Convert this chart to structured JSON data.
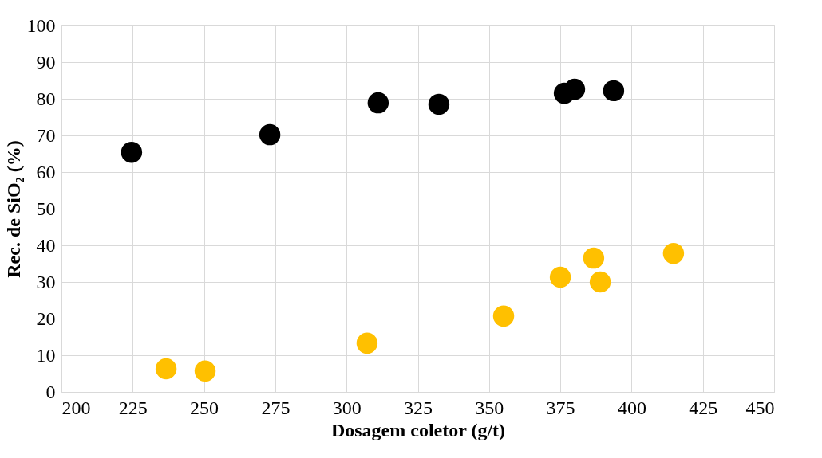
{
  "chart_data": {
    "type": "scatter",
    "xlabel": "Dosagem coletor (g/t)",
    "ylabel": "Rec. de SiO₂ (%)",
    "xlim": [
      200,
      450
    ],
    "xticks": [
      200,
      225,
      250,
      275,
      300,
      325,
      350,
      375,
      400,
      425,
      450
    ],
    "ylim": [
      0,
      100
    ],
    "yticks": [
      0,
      10,
      20,
      30,
      40,
      50,
      60,
      70,
      80,
      90,
      100
    ],
    "grid": true,
    "marker": "circle",
    "series": [
      {
        "color": "#000000",
        "x": [
          224.6,
          273.1,
          311.1,
          332.4,
          376.4,
          380,
          393.7
        ],
        "values": [
          65.4,
          70.2,
          78.9,
          78.5,
          81.5,
          82.6,
          82.2
        ]
      },
      {
        "color": "#ffc000",
        "x": [
          236.7,
          250.4,
          307.2,
          355.1,
          375,
          386.7,
          389,
          414.7
        ],
        "values": [
          6.3,
          5.7,
          13.3,
          20.7,
          31.3,
          36.5,
          30,
          37.8
        ]
      }
    ]
  }
}
